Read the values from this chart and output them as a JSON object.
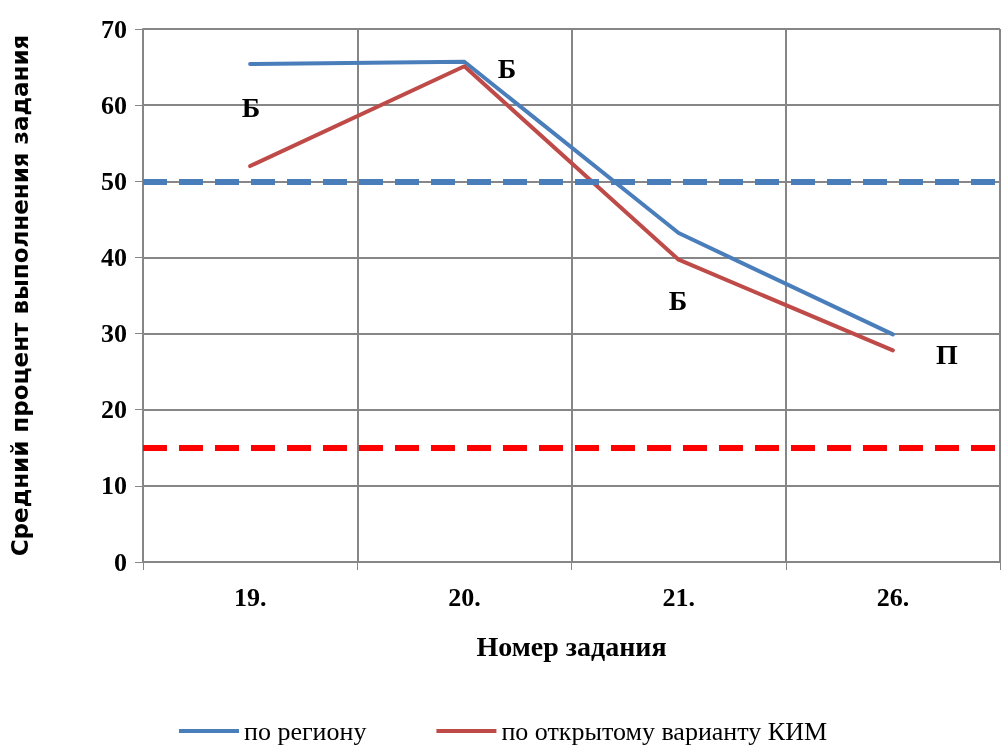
{
  "chart_data": {
    "type": "line",
    "xlabel": "Номер задания",
    "ylabel": "Средний процент выполнения задания",
    "categories": [
      "19.",
      "20.",
      "21.",
      "26."
    ],
    "series": [
      {
        "name": "по региону",
        "color": "#4a7ebb",
        "values": [
          65.4,
          65.7,
          43.2,
          29.9
        ]
      },
      {
        "name": "по открытому варианту КИМ",
        "color": "#be4b48",
        "values": [
          52.0,
          65.1,
          39.7,
          27.8
        ]
      }
    ],
    "ylim": [
      0,
      70
    ],
    "yticks": [
      0,
      10,
      20,
      30,
      40,
      50,
      60,
      70
    ],
    "grid": true,
    "legend": "bottom",
    "marker": "none",
    "line_style": "solid",
    "ref_lines": [
      {
        "axis": "y",
        "value": 50,
        "color": "#4a7ebb",
        "line_style": "dashed"
      },
      {
        "axis": "y",
        "value": 15,
        "color": "#ff0000",
        "line_style": "dashed"
      }
    ],
    "annotations": [
      "Б",
      "Б",
      "Б",
      "П"
    ]
  }
}
